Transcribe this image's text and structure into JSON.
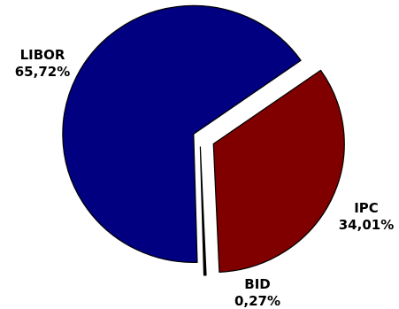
{
  "chart_data": {
    "type": "pie",
    "exploded": true,
    "slices": [
      {
        "label": "LIBOR",
        "value": 65.72,
        "value_text": "65,72%",
        "color": "#000080"
      },
      {
        "label": "IPC",
        "value": 34.01,
        "value_text": "34,01%",
        "color": "#800000"
      },
      {
        "label": "BID",
        "value": 0.27,
        "value_text": "0,27%",
        "color": "#000000"
      }
    ]
  }
}
